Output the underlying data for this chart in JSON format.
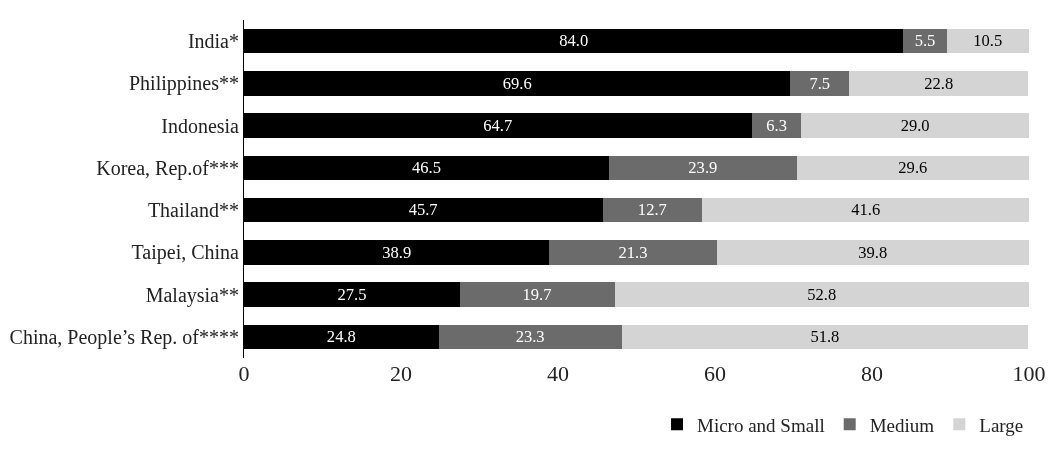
{
  "chart_data": {
    "type": "bar",
    "orientation": "horizontal",
    "stacked": true,
    "categories": [
      "India*",
      "Philippines**",
      "Indonesia",
      "Korea, Rep.of***",
      "Thailand**",
      "Taipei, China",
      "Malaysia**",
      "China, People’s Rep. of****"
    ],
    "series": [
      {
        "name": "Micro and Small",
        "color": "#000000",
        "values": [
          84.0,
          69.6,
          64.7,
          46.5,
          45.7,
          38.9,
          27.5,
          24.8
        ],
        "value_labels": [
          "84.0",
          "69.6",
          "64.7",
          "46.5",
          "45.7",
          "38.9",
          "27.5",
          "24.8"
        ]
      },
      {
        "name": "Medium",
        "color": "#6b6b6b",
        "values": [
          5.5,
          7.5,
          6.3,
          23.9,
          12.7,
          21.3,
          19.7,
          23.3
        ],
        "value_labels": [
          "5.5",
          "7.5",
          "6.3",
          "23.9",
          "12.7",
          "21.3",
          "19.7",
          "23.3"
        ]
      },
      {
        "name": "Large",
        "color": "#d4d4d4",
        "values": [
          10.5,
          22.8,
          29.0,
          29.6,
          41.6,
          39.8,
          52.8,
          51.8
        ],
        "value_labels": [
          "10.5",
          "22.8",
          "29.0",
          "29.6",
          "41.6",
          "39.8",
          "52.8",
          "51.8"
        ]
      }
    ],
    "xlim": [
      0,
      100
    ],
    "xticks": [
      0,
      20,
      40,
      60,
      80,
      100
    ],
    "grid": false,
    "legend": "bottom right"
  }
}
